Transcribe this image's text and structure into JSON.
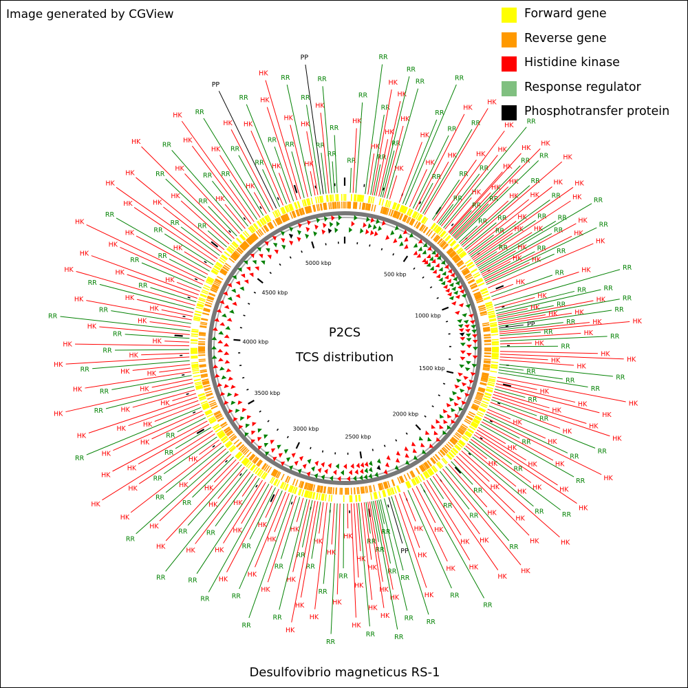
{
  "credit": "Image generated by CGView",
  "organism": "Desulfovibrio magneticus RS-1",
  "center_title": "P2CS",
  "center_subtitle": "TCS distribution",
  "colors": {
    "forward": "#ffff00",
    "reverse": "#ff9900",
    "hk": "#ff0000",
    "rr": "#008000",
    "rr_legend": "#80c080",
    "pp": "#000000"
  },
  "legend": [
    {
      "label": "Forward gene",
      "color": "#ffff00"
    },
    {
      "label": "Reverse gene",
      "color": "#ff9900"
    },
    {
      "label": "Histidine kinase",
      "color": "#ff0000"
    },
    {
      "label": "Response regulator",
      "color": "#80c080"
    },
    {
      "label": "Phosphotransfer protein",
      "color": "#000000"
    }
  ],
  "genome_length_kbp": 5250,
  "scale_labels": [
    {
      "kbp": 500,
      "text": "500 kbp"
    },
    {
      "kbp": 1000,
      "text": "1000 kbp"
    },
    {
      "kbp": 1500,
      "text": "1500 kbp"
    },
    {
      "kbp": 2000,
      "text": "2000 kbp"
    },
    {
      "kbp": 2500,
      "text": "2500 kbp"
    },
    {
      "kbp": 3000,
      "text": "3000 kbp"
    },
    {
      "kbp": 3500,
      "text": "3500 kbp"
    },
    {
      "kbp": 4000,
      "text": "4000 kbp"
    },
    {
      "kbp": 4500,
      "text": "4500 kbp"
    },
    {
      "kbp": 5000,
      "text": "5000 kbp"
    }
  ],
  "features": [
    {
      "kbp": 30,
      "type": "RR"
    },
    {
      "kbp": 45,
      "type": "HK"
    },
    {
      "kbp": 60,
      "type": "RR"
    },
    {
      "kbp": 110,
      "type": "RR"
    },
    {
      "kbp": 125,
      "type": "HK"
    },
    {
      "kbp": 140,
      "type": "RR"
    },
    {
      "kbp": 150,
      "type": "HK"
    },
    {
      "kbp": 160,
      "type": "RR"
    },
    {
      "kbp": 170,
      "type": "HK"
    },
    {
      "kbp": 185,
      "type": "HK"
    },
    {
      "kbp": 195,
      "type": "RR"
    },
    {
      "kbp": 205,
      "type": "RR"
    },
    {
      "kbp": 215,
      "type": "HK"
    },
    {
      "kbp": 230,
      "type": "RR"
    },
    {
      "kbp": 245,
      "type": "HK"
    },
    {
      "kbp": 300,
      "type": "HK"
    },
    {
      "kbp": 320,
      "type": "RR"
    },
    {
      "kbp": 335,
      "type": "RR"
    },
    {
      "kbp": 360,
      "type": "HK"
    },
    {
      "kbp": 380,
      "type": "RR"
    },
    {
      "kbp": 395,
      "type": "HK"
    },
    {
      "kbp": 410,
      "type": "RR"
    },
    {
      "kbp": 425,
      "type": "HK"
    },
    {
      "kbp": 440,
      "type": "RR"
    },
    {
      "kbp": 450,
      "type": "HK"
    },
    {
      "kbp": 500,
      "type": "RR"
    },
    {
      "kbp": 510,
      "type": "HK"
    },
    {
      "kbp": 530,
      "type": "HK"
    },
    {
      "kbp": 540,
      "type": "RR"
    },
    {
      "kbp": 550,
      "type": "RR"
    },
    {
      "kbp": 560,
      "type": "HK"
    },
    {
      "kbp": 575,
      "type": "RR"
    },
    {
      "kbp": 585,
      "type": "HK"
    },
    {
      "kbp": 610,
      "type": "HK"
    },
    {
      "kbp": 615,
      "type": "HK"
    },
    {
      "kbp": 622,
      "type": "RR"
    },
    {
      "kbp": 630,
      "type": "HK"
    },
    {
      "kbp": 640,
      "type": "RR"
    },
    {
      "kbp": 648,
      "type": "HK"
    },
    {
      "kbp": 655,
      "type": "RR"
    },
    {
      "kbp": 662,
      "type": "HK"
    },
    {
      "kbp": 670,
      "type": "RR"
    },
    {
      "kbp": 690,
      "type": "RR"
    },
    {
      "kbp": 700,
      "type": "HK"
    },
    {
      "kbp": 710,
      "type": "RR"
    },
    {
      "kbp": 720,
      "type": "HK"
    },
    {
      "kbp": 735,
      "type": "RR"
    },
    {
      "kbp": 745,
      "type": "HK"
    },
    {
      "kbp": 760,
      "type": "HK"
    },
    {
      "kbp": 770,
      "type": "RR"
    },
    {
      "kbp": 780,
      "type": "HK"
    },
    {
      "kbp": 790,
      "type": "RR"
    },
    {
      "kbp": 800,
      "type": "HK"
    },
    {
      "kbp": 810,
      "type": "HK"
    },
    {
      "kbp": 820,
      "type": "RR"
    },
    {
      "kbp": 830,
      "type": "HK"
    },
    {
      "kbp": 840,
      "type": "RR"
    },
    {
      "kbp": 850,
      "type": "HK"
    },
    {
      "kbp": 860,
      "type": "RR"
    },
    {
      "kbp": 870,
      "type": "RR"
    },
    {
      "kbp": 880,
      "type": "HK"
    },
    {
      "kbp": 890,
      "type": "RR"
    },
    {
      "kbp": 900,
      "type": "HK"
    },
    {
      "kbp": 910,
      "type": "HK"
    },
    {
      "kbp": 920,
      "type": "RR"
    },
    {
      "kbp": 930,
      "type": "HK"
    },
    {
      "kbp": 940,
      "type": "RR"
    },
    {
      "kbp": 950,
      "type": "HK"
    },
    {
      "kbp": 960,
      "type": "RR"
    },
    {
      "kbp": 980,
      "type": "HK"
    },
    {
      "kbp": 1010,
      "type": "HK"
    },
    {
      "kbp": 1030,
      "type": "RR"
    },
    {
      "kbp": 1050,
      "type": "HK"
    },
    {
      "kbp": 1080,
      "type": "RR"
    },
    {
      "kbp": 1095,
      "type": "HK"
    },
    {
      "kbp": 1110,
      "type": "RR"
    },
    {
      "kbp": 1125,
      "type": "RR"
    },
    {
      "kbp": 1135,
      "type": "HK"
    },
    {
      "kbp": 1145,
      "type": "RR"
    },
    {
      "kbp": 1155,
      "type": "HK"
    },
    {
      "kbp": 1165,
      "type": "RR"
    },
    {
      "kbp": 1175,
      "type": "HK"
    },
    {
      "kbp": 1185,
      "type": "HK"
    },
    {
      "kbp": 1195,
      "type": "RR"
    },
    {
      "kbp": 1205,
      "type": "PP"
    },
    {
      "kbp": 1215,
      "type": "RR"
    },
    {
      "kbp": 1225,
      "type": "HK"
    },
    {
      "kbp": 1235,
      "type": "HK"
    },
    {
      "kbp": 1245,
      "type": "RR"
    },
    {
      "kbp": 1260,
      "type": "HK"
    },
    {
      "kbp": 1275,
      "type": "RR"
    },
    {
      "kbp": 1290,
      "type": "HK"
    },
    {
      "kbp": 1305,
      "type": "RR"
    },
    {
      "kbp": 1330,
      "type": "HK"
    },
    {
      "kbp": 1345,
      "type": "HK"
    },
    {
      "kbp": 1360,
      "type": "HK"
    },
    {
      "kbp": 1375,
      "type": "HK"
    },
    {
      "kbp": 1400,
      "type": "RR"
    },
    {
      "kbp": 1415,
      "type": "RR"
    },
    {
      "kbp": 1430,
      "type": "RR"
    },
    {
      "kbp": 1445,
      "type": "RR"
    },
    {
      "kbp": 1470,
      "type": "HK"
    },
    {
      "kbp": 1490,
      "type": "HK"
    },
    {
      "kbp": 1505,
      "type": "HK"
    },
    {
      "kbp": 1520,
      "type": "HK"
    },
    {
      "kbp": 1535,
      "type": "RR"
    },
    {
      "kbp": 1550,
      "type": "HK"
    },
    {
      "kbp": 1565,
      "type": "HK"
    },
    {
      "kbp": 1580,
      "type": "HK"
    },
    {
      "kbp": 1595,
      "type": "RR"
    },
    {
      "kbp": 1610,
      "type": "HK"
    },
    {
      "kbp": 1630,
      "type": "RR"
    },
    {
      "kbp": 1650,
      "type": "HK"
    },
    {
      "kbp": 1665,
      "type": "HK"
    },
    {
      "kbp": 1680,
      "type": "RR"
    },
    {
      "kbp": 1695,
      "type": "HK"
    },
    {
      "kbp": 1710,
      "type": "RR"
    },
    {
      "kbp": 1725,
      "type": "HK"
    },
    {
      "kbp": 1740,
      "type": "RR"
    },
    {
      "kbp": 1760,
      "type": "HK"
    },
    {
      "kbp": 1775,
      "type": "HK"
    },
    {
      "kbp": 1790,
      "type": "HK"
    },
    {
      "kbp": 1805,
      "type": "HK"
    },
    {
      "kbp": 1820,
      "type": "RR"
    },
    {
      "kbp": 1835,
      "type": "HK"
    },
    {
      "kbp": 1850,
      "type": "RR"
    },
    {
      "kbp": 1865,
      "type": "HK"
    },
    {
      "kbp": 1880,
      "type": "HK"
    },
    {
      "kbp": 1895,
      "type": "RR"
    },
    {
      "kbp": 1915,
      "type": "HK"
    },
    {
      "kbp": 1935,
      "type": "HK"
    },
    {
      "kbp": 1955,
      "type": "HK"
    },
    {
      "kbp": 1975,
      "type": "HK"
    },
    {
      "kbp": 1995,
      "type": "RR"
    },
    {
      "kbp": 2015,
      "type": "HK"
    },
    {
      "kbp": 2035,
      "type": "RR"
    },
    {
      "kbp": 2055,
      "type": "HK"
    },
    {
      "kbp": 2075,
      "type": "RR"
    },
    {
      "kbp": 2100,
      "type": "HK"
    },
    {
      "kbp": 2120,
      "type": "HK"
    },
    {
      "kbp": 2140,
      "type": "RR"
    },
    {
      "kbp": 2160,
      "type": "HK"
    },
    {
      "kbp": 2180,
      "type": "HK"
    },
    {
      "kbp": 2200,
      "type": "RR"
    },
    {
      "kbp": 2225,
      "type": "HK"
    },
    {
      "kbp": 2250,
      "type": "HK"
    },
    {
      "kbp": 2275,
      "type": "RR"
    },
    {
      "kbp": 2300,
      "type": "HK"
    },
    {
      "kbp": 2325,
      "type": "HK"
    },
    {
      "kbp": 2350,
      "type": "HK"
    },
    {
      "kbp": 2370,
      "type": "RR"
    },
    {
      "kbp": 2385,
      "type": "PP"
    },
    {
      "kbp": 2410,
      "type": "RR"
    },
    {
      "kbp": 2430,
      "type": "RR"
    },
    {
      "kbp": 2440,
      "type": "RR"
    },
    {
      "kbp": 2450,
      "type": "RR"
    },
    {
      "kbp": 2460,
      "type": "HK"
    },
    {
      "kbp": 2470,
      "type": "RR"
    },
    {
      "kbp": 2480,
      "type": "RR"
    },
    {
      "kbp": 2490,
      "type": "HK"
    },
    {
      "kbp": 2500,
      "type": "HK"
    },
    {
      "kbp": 2510,
      "type": "RR"
    },
    {
      "kbp": 2520,
      "type": "HK"
    },
    {
      "kbp": 2535,
      "type": "HK"
    },
    {
      "kbp": 2550,
      "type": "RR"
    },
    {
      "kbp": 2560,
      "type": "HK"
    },
    {
      "kbp": 2575,
      "type": "HK"
    },
    {
      "kbp": 2590,
      "type": "HK"
    },
    {
      "kbp": 2610,
      "type": "HK"
    },
    {
      "kbp": 2630,
      "type": "RR"
    },
    {
      "kbp": 2650,
      "type": "HK"
    },
    {
      "kbp": 2665,
      "type": "RR"
    },
    {
      "kbp": 2680,
      "type": "HK"
    },
    {
      "kbp": 2700,
      "type": "RR"
    },
    {
      "kbp": 2720,
      "type": "HK"
    },
    {
      "kbp": 2740,
      "type": "HK"
    },
    {
      "kbp": 2755,
      "type": "RR"
    },
    {
      "kbp": 2770,
      "type": "HK"
    },
    {
      "kbp": 2785,
      "type": "HK"
    },
    {
      "kbp": 2800,
      "type": "RR"
    },
    {
      "kbp": 2815,
      "type": "HK"
    },
    {
      "kbp": 2830,
      "type": "RR"
    },
    {
      "kbp": 2850,
      "type": "HK"
    },
    {
      "kbp": 2870,
      "type": "RR"
    },
    {
      "kbp": 2890,
      "type": "HK"
    },
    {
      "kbp": 2910,
      "type": "RR"
    },
    {
      "kbp": 2930,
      "type": "HK"
    },
    {
      "kbp": 2950,
      "type": "HK"
    },
    {
      "kbp": 2970,
      "type": "RR"
    },
    {
      "kbp": 2990,
      "type": "HK"
    },
    {
      "kbp": 3010,
      "type": "RR"
    },
    {
      "kbp": 3030,
      "type": "HK"
    },
    {
      "kbp": 3050,
      "type": "RR"
    },
    {
      "kbp": 3070,
      "type": "HK"
    },
    {
      "kbp": 3090,
      "type": "HK"
    },
    {
      "kbp": 3110,
      "type": "RR"
    },
    {
      "kbp": 3130,
      "type": "HK"
    },
    {
      "kbp": 3150,
      "type": "RR"
    },
    {
      "kbp": 3170,
      "type": "HK"
    },
    {
      "kbp": 3190,
      "type": "RR"
    },
    {
      "kbp": 3210,
      "type": "HK"
    },
    {
      "kbp": 3230,
      "type": "RR"
    },
    {
      "kbp": 3250,
      "type": "HK"
    },
    {
      "kbp": 3270,
      "type": "HK"
    },
    {
      "kbp": 3290,
      "type": "RR"
    },
    {
      "kbp": 3310,
      "type": "HK"
    },
    {
      "kbp": 3330,
      "type": "RR"
    },
    {
      "kbp": 3350,
      "type": "HK"
    },
    {
      "kbp": 3370,
      "type": "RR"
    },
    {
      "kbp": 3390,
      "type": "HK"
    },
    {
      "kbp": 3410,
      "type": "HK"
    },
    {
      "kbp": 3430,
      "type": "RR"
    },
    {
      "kbp": 3450,
      "type": "HK"
    },
    {
      "kbp": 3470,
      "type": "HK"
    },
    {
      "kbp": 3490,
      "type": "RR"
    },
    {
      "kbp": 3510,
      "type": "HK"
    },
    {
      "kbp": 3530,
      "type": "HK"
    },
    {
      "kbp": 3550,
      "type": "RR"
    },
    {
      "kbp": 3570,
      "type": "HK"
    },
    {
      "kbp": 3590,
      "type": "HK"
    },
    {
      "kbp": 3610,
      "type": "RR"
    },
    {
      "kbp": 3630,
      "type": "HK"
    },
    {
      "kbp": 3650,
      "type": "HK"
    },
    {
      "kbp": 3670,
      "type": "HK"
    },
    {
      "kbp": 3690,
      "type": "HK"
    },
    {
      "kbp": 3710,
      "type": "HK"
    },
    {
      "kbp": 3730,
      "type": "RR"
    },
    {
      "kbp": 3750,
      "type": "HK"
    },
    {
      "kbp": 3770,
      "type": "HK"
    },
    {
      "kbp": 3790,
      "type": "RR"
    },
    {
      "kbp": 3810,
      "type": "HK"
    },
    {
      "kbp": 3830,
      "type": "HK"
    },
    {
      "kbp": 3850,
      "type": "HK"
    },
    {
      "kbp": 3870,
      "type": "RR"
    },
    {
      "kbp": 3890,
      "type": "HK"
    },
    {
      "kbp": 3910,
      "type": "HK"
    },
    {
      "kbp": 3930,
      "type": "RR"
    },
    {
      "kbp": 3950,
      "type": "HK"
    },
    {
      "kbp": 3970,
      "type": "HK"
    },
    {
      "kbp": 3990,
      "type": "RR"
    },
    {
      "kbp": 4010,
      "type": "HK"
    },
    {
      "kbp": 4030,
      "type": "RR"
    },
    {
      "kbp": 4050,
      "type": "HK"
    },
    {
      "kbp": 4070,
      "type": "RR"
    },
    {
      "kbp": 4090,
      "type": "HK"
    },
    {
      "kbp": 4110,
      "type": "HK"
    },
    {
      "kbp": 4130,
      "type": "HK"
    },
    {
      "kbp": 4150,
      "type": "RR"
    },
    {
      "kbp": 4170,
      "type": "HK"
    },
    {
      "kbp": 4190,
      "type": "RR"
    },
    {
      "kbp": 4210,
      "type": "HK"
    },
    {
      "kbp": 4230,
      "type": "HK"
    },
    {
      "kbp": 4250,
      "type": "HK"
    },
    {
      "kbp": 4270,
      "type": "RR"
    },
    {
      "kbp": 4290,
      "type": "HK"
    },
    {
      "kbp": 4310,
      "type": "HK"
    },
    {
      "kbp": 4330,
      "type": "RR"
    },
    {
      "kbp": 4350,
      "type": "HK"
    },
    {
      "kbp": 4370,
      "type": "RR"
    },
    {
      "kbp": 4390,
      "type": "HK"
    },
    {
      "kbp": 4410,
      "type": "RR"
    },
    {
      "kbp": 4430,
      "type": "HK"
    },
    {
      "kbp": 4450,
      "type": "HK"
    },
    {
      "kbp": 4470,
      "type": "RR"
    },
    {
      "kbp": 4490,
      "type": "HK"
    },
    {
      "kbp": 4510,
      "type": "HK"
    },
    {
      "kbp": 4530,
      "type": "RR"
    },
    {
      "kbp": 4550,
      "type": "HK"
    },
    {
      "kbp": 4570,
      "type": "RR"
    },
    {
      "kbp": 4590,
      "type": "HK"
    },
    {
      "kbp": 4610,
      "type": "RR"
    },
    {
      "kbp": 4630,
      "type": "HK"
    },
    {
      "kbp": 4650,
      "type": "RR"
    },
    {
      "kbp": 4670,
      "type": "HK"
    },
    {
      "kbp": 4690,
      "type": "RR"
    },
    {
      "kbp": 4710,
      "type": "HK"
    },
    {
      "kbp": 4730,
      "type": "HK"
    },
    {
      "kbp": 4750,
      "type": "RR"
    },
    {
      "kbp": 4770,
      "type": "HK"
    },
    {
      "kbp": 4790,
      "type": "RR"
    },
    {
      "kbp": 4810,
      "type": "HK"
    },
    {
      "kbp": 4830,
      "type": "RR"
    },
    {
      "kbp": 4850,
      "type": "HK"
    },
    {
      "kbp": 4870,
      "type": "PP"
    },
    {
      "kbp": 4890,
      "type": "RR"
    },
    {
      "kbp": 4910,
      "type": "HK"
    },
    {
      "kbp": 4930,
      "type": "RR"
    },
    {
      "kbp": 4950,
      "type": "HK"
    },
    {
      "kbp": 4970,
      "type": "RR"
    },
    {
      "kbp": 4990,
      "type": "HK"
    },
    {
      "kbp": 5010,
      "type": "HK"
    },
    {
      "kbp": 5030,
      "type": "RR"
    },
    {
      "kbp": 5050,
      "type": "HK"
    },
    {
      "kbp": 5070,
      "type": "RR"
    },
    {
      "kbp": 5090,
      "type": "HK"
    },
    {
      "kbp": 5105,
      "type": "HK"
    },
    {
      "kbp": 5120,
      "type": "RR"
    },
    {
      "kbp": 5135,
      "type": "PP"
    },
    {
      "kbp": 5150,
      "type": "RR"
    },
    {
      "kbp": 5165,
      "type": "HK"
    },
    {
      "kbp": 5180,
      "type": "RR"
    },
    {
      "kbp": 5195,
      "type": "RR"
    },
    {
      "kbp": 5210,
      "type": "RR"
    }
  ]
}
